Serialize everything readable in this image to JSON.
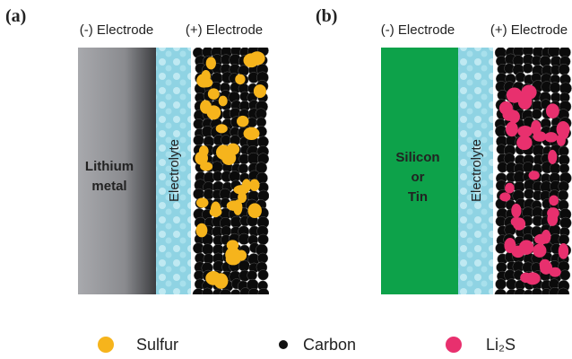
{
  "panels": [
    {
      "label": "(a)",
      "negative_label": "(-) Electrode",
      "positive_label": "(+) Electrode",
      "anode_lines": [
        "Lithium",
        "metal"
      ],
      "electrolyte_label": "Electrolyte"
    },
    {
      "label": "(b)",
      "negative_label": "(-) Electrode",
      "positive_label": "(+) Electrode",
      "anode_lines": [
        "Silicon",
        "or",
        "Tin"
      ],
      "electrolyte_label": "Electrolyte"
    }
  ],
  "legend": [
    {
      "label": "Sulfur"
    },
    {
      "label": "Carbon"
    },
    {
      "label": "Li₂S"
    }
  ]
}
